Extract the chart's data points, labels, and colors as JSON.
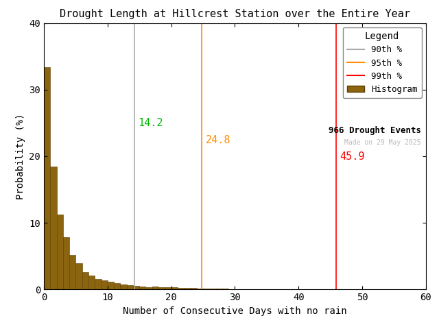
{
  "title": "Drought Length at Hillcrest Station over the Entire Year",
  "xlabel": "Number of Consecutive Days with no rain",
  "ylabel": "Probability (%)",
  "xlim": [
    0,
    60
  ],
  "ylim": [
    0,
    40
  ],
  "xticks": [
    0,
    10,
    20,
    30,
    40,
    50,
    60
  ],
  "yticks": [
    0,
    10,
    20,
    30,
    40
  ],
  "bar_color": "#8B6410",
  "bar_edge_color": "#5C3D00",
  "n_drought_events": 966,
  "percentile_90": 14.2,
  "percentile_95": 24.8,
  "percentile_99": 45.9,
  "p90_line_color": "#AAAAAA",
  "p95_line_color": "#FF8C00",
  "p99_line_color": "#FF0000",
  "p90_text_color": "#00BB00",
  "p95_text_color": "#FF8C00",
  "p99_text_color": "#FF0000",
  "watermark": "Made on 29 May 2025",
  "watermark_color": "#BBBBBB",
  "legend_title": "Legend",
  "drought_events_label": "966 Drought Events",
  "histogram_label": "Histogram",
  "p90_label": "90th %",
  "p95_label": "95th %",
  "p99_label": "99th %",
  "bin_probabilities": [
    33.4,
    18.5,
    11.3,
    7.9,
    5.2,
    3.9,
    2.6,
    2.1,
    1.6,
    1.4,
    1.2,
    1.0,
    0.8,
    0.7,
    0.6,
    0.5,
    0.4,
    0.5,
    0.4,
    0.3,
    0.3,
    0.2,
    0.2,
    0.2,
    0.15,
    0.1,
    0.1,
    0.1,
    0.1,
    0.08,
    0.07,
    0.06,
    0.07,
    0.06,
    0.05,
    0.04,
    0.04,
    0.04,
    0.03,
    0.03,
    0.03,
    0.02,
    0.02,
    0.02,
    0.02,
    0.02,
    0.0,
    0.02,
    0.02,
    0.0,
    0.0,
    0.0,
    0.0,
    0.0,
    0.0,
    0.0,
    0.0,
    0.0,
    0.0,
    0.0
  ],
  "background_color": "#ffffff",
  "font_family": "monospace",
  "title_fontsize": 11,
  "label_fontsize": 10,
  "tick_fontsize": 10,
  "legend_fontsize": 9,
  "annotation_fontsize": 11
}
